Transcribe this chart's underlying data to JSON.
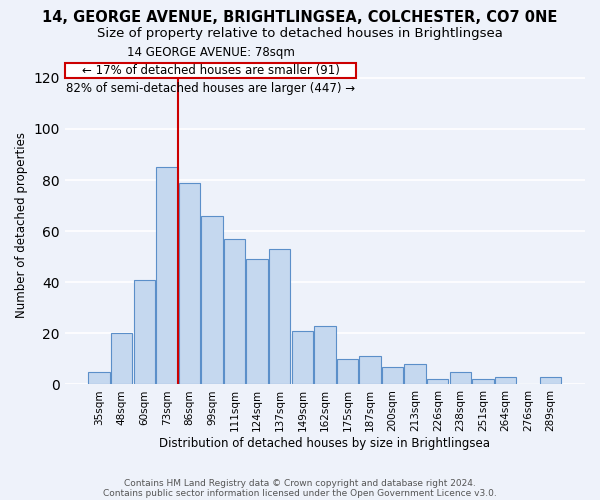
{
  "title": "14, GEORGE AVENUE, BRIGHTLINGSEA, COLCHESTER, CO7 0NE",
  "subtitle": "Size of property relative to detached houses in Brightlingsea",
  "xlabel": "Distribution of detached houses by size in Brightlingsea",
  "ylabel": "Number of detached properties",
  "categories": [
    "35sqm",
    "48sqm",
    "60sqm",
    "73sqm",
    "86sqm",
    "99sqm",
    "111sqm",
    "124sqm",
    "137sqm",
    "149sqm",
    "162sqm",
    "175sqm",
    "187sqm",
    "200sqm",
    "213sqm",
    "226sqm",
    "238sqm",
    "251sqm",
    "264sqm",
    "276sqm",
    "289sqm"
  ],
  "values": [
    5,
    20,
    41,
    85,
    79,
    66,
    57,
    49,
    53,
    21,
    23,
    10,
    11,
    7,
    8,
    2,
    5,
    2,
    3,
    0,
    3
  ],
  "bar_color": "#c5d8ef",
  "bar_edge_color": "#5b8fc9",
  "vline_x": 3.5,
  "vline_color": "#cc0000",
  "annotation_line1": "14 GEORGE AVENUE: 78sqm",
  "annotation_line2": "← 17% of detached houses are smaller (91)",
  "annotation_line3": "82% of semi-detached houses are larger (447) →",
  "ylim": [
    0,
    125
  ],
  "yticks": [
    0,
    20,
    40,
    60,
    80,
    100,
    120
  ],
  "footer1": "Contains HM Land Registry data © Crown copyright and database right 2024.",
  "footer2": "Contains public sector information licensed under the Open Government Licence v3.0.",
  "background_color": "#eef2fa",
  "plot_bg_color": "#eef2fa",
  "grid_color": "#ffffff",
  "title_fontsize": 10.5,
  "subtitle_fontsize": 9.5,
  "annotation_fontsize": 8.5,
  "axis_fontsize": 8.5,
  "tick_fontsize": 7.5
}
